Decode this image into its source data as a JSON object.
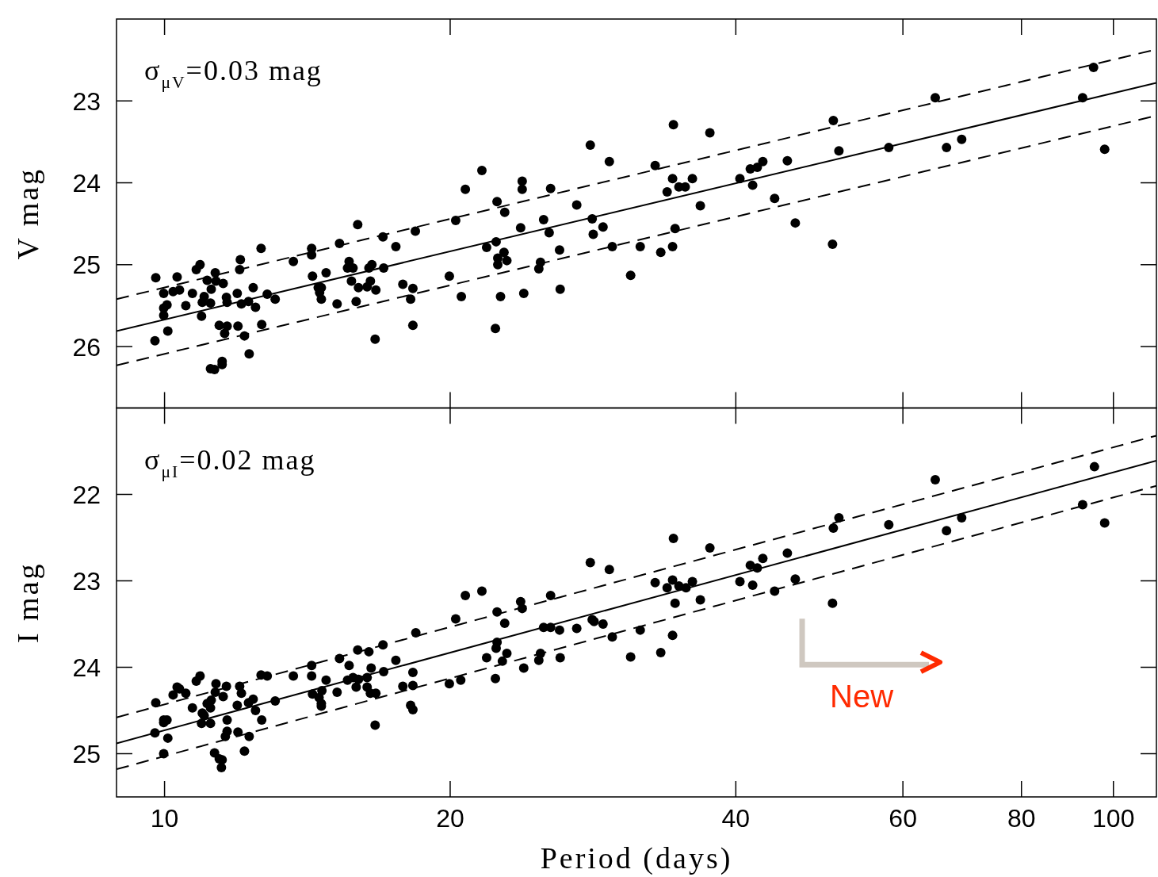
{
  "chart_data": [
    {
      "type": "scatter",
      "ylabel": "V mag",
      "log": "x",
      "tick_labels": "y",
      "xlim": [
        8.9,
        111
      ],
      "xticks": [
        10,
        20,
        40,
        60,
        80,
        100
      ],
      "ylim": [
        26.75,
        22
      ],
      "yticks": [
        23,
        24,
        25,
        26
      ],
      "annotations": [
        "σ$_{μV}$=0.03 mag"
      ],
      "series": [
        {
          "type": "scatter",
          "marker": "circle",
          "color": "#000000",
          "x": [
            9.79,
            9.77,
            9.98,
            10.06,
            9.98,
            9.98,
            10.08,
            10.21,
            10.31,
            10.37,
            10.53,
            10.7,
            10.8,
            10.9,
            10.94,
            10.96,
            11.01,
            11.09,
            11.18,
            11.2,
            11.31,
            11.33,
            11.18,
            11.29,
            11.5,
            11.5,
            11.42,
            11.57,
            11.64,
            11.53,
            11.62,
            11.64,
            11.93,
            11.95,
            12,
            12.02,
            12.05,
            12.14,
            12.26,
            12.28,
            12.4,
            12.47,
            12.64,
            12.66,
            12.83,
            13.08,
            13.67,
            14.29,
            14.29,
            14.32,
            14.52,
            14.63,
            14.57,
            14.63,
            14.8,
            15.2,
            15.29,
            15.65,
            15.59,
            15.8,
            15.74,
            15.98,
            16.01,
            15.92,
            16.35,
            16.42,
            16.54,
            16.48,
            16.7,
            16.67,
            16.99,
            17.02,
            17.53,
            17.83,
            18.27,
            18.17,
            18.27,
            18.38,
            19.96,
            20.27,
            20.75,
            21.6,
            21.85,
            22.36,
            22.41,
            22.45,
            22.45,
            22.79,
            22.83,
            22.95,
            23.82,
            23.82,
            23.73,
            24.9,
            24.8,
            25.09,
            25.43,
            25.52,
            26.08,
            27.19,
            28.1,
            28.23,
            28.3,
            28.98,
            29.43,
            29.64,
            30.99,
            31.72,
            32.89,
            33.34,
            33.86,
            34.31,
            34.31,
            34.38,
            34.52,
            34.84,
            35.38,
            36,
            36.7,
            37.56,
            40.4,
            41.43,
            42.14,
            41.67,
            42.71,
            43.95,
            45.33,
            46.21,
            50.58,
            50.68,
            51.37,
            57.98,
            66.7,
            69.2,
            64.9,
            92.8,
            95.3,
            97.9,
            20.55,
            22.32,
            22.6,
            23.91,
            26.12
          ],
          "values": [
            25.16,
            25.93,
            25.35,
            25.49,
            25.53,
            25.62,
            25.81,
            25.33,
            25.15,
            25.31,
            25.5,
            25.35,
            25.06,
            25,
            25.63,
            25.46,
            25.39,
            25.19,
            25.47,
            25.3,
            25.1,
            25.2,
            26.27,
            26.28,
            26.18,
            26.22,
            25.74,
            25.84,
            25.75,
            25.23,
            25.4,
            25.46,
            25.35,
            25.75,
            25.06,
            24.94,
            25.48,
            25.87,
            25.45,
            26.09,
            25.28,
            25.52,
            24.8,
            25.73,
            25.36,
            25.42,
            24.96,
            24.8,
            24.88,
            25.14,
            25.28,
            25.28,
            25.34,
            25.42,
            25.1,
            25.48,
            24.74,
            24.96,
            25.04,
            25.04,
            25.2,
            24.51,
            25.28,
            25.45,
            25.27,
            25.04,
            25,
            25.2,
            25.31,
            25.91,
            24.66,
            25.04,
            24.78,
            25.24,
            25.29,
            25.42,
            25.74,
            24.59,
            25.14,
            24.46,
            24.08,
            23.85,
            24.79,
            24.72,
            24.23,
            24.92,
            25,
            24.85,
            24.36,
            24.95,
            23.98,
            24.08,
            24.55,
            24.97,
            25.05,
            24.45,
            24.61,
            24.07,
            24.82,
            24.27,
            23.54,
            24.44,
            24.63,
            24.54,
            23.74,
            24.78,
            25.13,
            24.78,
            23.79,
            24.85,
            24.11,
            24.78,
            23.95,
            23.29,
            24.56,
            24.05,
            24.05,
            23.95,
            24.28,
            23.39,
            23.95,
            23.83,
            23.81,
            24.03,
            23.74,
            24.19,
            23.73,
            24.49,
            24.75,
            23.24,
            23.61,
            23.57,
            23.57,
            23.47,
            22.96,
            22.96,
            22.59,
            23.59,
            25.39,
            25.78,
            25.39,
            25.35,
            25.3
          ]
        },
        {
          "type": "line",
          "color": "#000000",
          "line_style": "solid",
          "x": [
            8.9,
            111
          ],
          "values": [
            25.81,
            22.78
          ]
        },
        {
          "type": "line",
          "color": "#000000",
          "line_style": "dashed",
          "x": [
            8.9,
            111
          ],
          "values": [
            25.42,
            22.37
          ]
        },
        {
          "type": "line",
          "color": "#000000",
          "line_style": "dashed",
          "x": [
            8.9,
            111
          ],
          "values": [
            26.23,
            23.18
          ]
        }
      ]
    },
    {
      "type": "scatter",
      "xlabel": "Period (days)",
      "ylabel": "I mag",
      "log": "x",
      "xlim": [
        8.9,
        111
      ],
      "xticks": [
        10,
        20,
        40,
        60,
        80,
        100
      ],
      "ylim": [
        25.5,
        21
      ],
      "yticks": [
        22,
        23,
        24,
        25
      ],
      "annotations": [
        "σ$_{μI}$=0.02 mag",
        "New"
      ],
      "series": [
        {
          "type": "scatter",
          "marker": "circle",
          "color": "#000000",
          "x": [
            9.79,
            9.77,
            9.98,
            10.06,
            9.98,
            10.08,
            9.98,
            10.21,
            10.31,
            10.37,
            10.53,
            10.7,
            10.8,
            10.9,
            10.94,
            10.96,
            11.01,
            11.09,
            11.18,
            11.2,
            11.31,
            11.33,
            11.18,
            11.29,
            11.42,
            11.48,
            11.5,
            11.53,
            11.62,
            11.64,
            11.64,
            11.59,
            11.95,
            11.93,
            12,
            12.05,
            12.14,
            12.26,
            12.28,
            12.4,
            12.47,
            12.64,
            12.83,
            12.66,
            13.08,
            13.67,
            14.29,
            14.29,
            14.32,
            14.55,
            14.63,
            14.63,
            14.65,
            14.8,
            15.2,
            15.29,
            15.65,
            15.59,
            15.8,
            15.92,
            15.98,
            16.01,
            16.35,
            16.35,
            16.42,
            16.51,
            16.48,
            16.7,
            16.67,
            16.99,
            17.02,
            17.53,
            17.83,
            18.27,
            18.27,
            18.17,
            18.27,
            18.4,
            19.96,
            20.27,
            20.75,
            21.6,
            21.85,
            22.36,
            22.41,
            22.41,
            22.32,
            22.7,
            22.83,
            22.95,
            23.73,
            23.82,
            23.91,
            24.9,
            24.8,
            25.09,
            25.52,
            25.52,
            26.12,
            26.08,
            27.19,
            28.1,
            28.23,
            28.36,
            28.98,
            29.43,
            29.64,
            30.99,
            31.72,
            32.89,
            33.34,
            33.86,
            34.31,
            34.31,
            34.38,
            34.52,
            34.84,
            35.45,
            36,
            36.7,
            37.56,
            40.4,
            41.43,
            42.14,
            41.67,
            42.71,
            43.95,
            45.33,
            46.21,
            50.58,
            50.68,
            51.37,
            57.98,
            64.9,
            66.7,
            69.2,
            92.8,
            95.5,
            97.9,
            20.52
          ],
          "values": [
            24.41,
            24.76,
            24.61,
            24.61,
            24.64,
            24.82,
            25,
            24.32,
            24.23,
            24.25,
            24.3,
            24.47,
            24.16,
            24.1,
            24.65,
            24.53,
            24.56,
            24.42,
            24.47,
            24.38,
            24.29,
            24.19,
            24.65,
            24.99,
            25.06,
            25.16,
            25.07,
            24.34,
            24.22,
            24.61,
            24.74,
            24.8,
            24.75,
            24.44,
            24.22,
            24.3,
            24.97,
            24.41,
            24.8,
            24.37,
            24.5,
            24.09,
            24.1,
            24.61,
            24.39,
            24.1,
            24.1,
            23.98,
            24.31,
            24.35,
            24.42,
            24.45,
            24.27,
            24.15,
            24.29,
            23.9,
            23.98,
            24.15,
            24.12,
            24.23,
            23.8,
            24.14,
            24.12,
            24.23,
            23.82,
            24.01,
            24.3,
            24.3,
            24.67,
            23.74,
            24.05,
            23.92,
            24.22,
            24.06,
            24.21,
            24.44,
            24.49,
            23.6,
            24.19,
            23.44,
            23.17,
            23.12,
            23.89,
            23.78,
            23.71,
            23.36,
            24.13,
            23.93,
            23.49,
            23.84,
            23.24,
            23.32,
            24.01,
            23.84,
            23.92,
            23.54,
            23.54,
            23.17,
            23.89,
            23.57,
            23.55,
            22.79,
            23.45,
            23.47,
            23.5,
            22.87,
            23.65,
            23.88,
            23.57,
            23.02,
            23.83,
            23.08,
            23.63,
            22.99,
            22.51,
            23.26,
            23.06,
            23.08,
            23.01,
            23.22,
            22.62,
            23.01,
            22.82,
            22.85,
            23.05,
            22.74,
            23.12,
            22.68,
            22.98,
            23.26,
            22.39,
            22.27,
            22.35,
            21.83,
            22.42,
            22.27,
            22.12,
            21.68,
            22.33,
            24.15
          ]
        },
        {
          "type": "line",
          "color": "#000000",
          "line_style": "solid",
          "x": [
            8.9,
            111
          ],
          "values": [
            24.88,
            21.61
          ]
        },
        {
          "type": "line",
          "color": "#000000",
          "line_style": "dashed",
          "x": [
            8.9,
            111
          ],
          "values": [
            24.58,
            21.32
          ]
        },
        {
          "type": "line",
          "color": "#000000",
          "line_style": "dashed",
          "x": [
            8.9,
            111
          ],
          "values": [
            25.18,
            21.9
          ]
        }
      ]
    }
  ]
}
